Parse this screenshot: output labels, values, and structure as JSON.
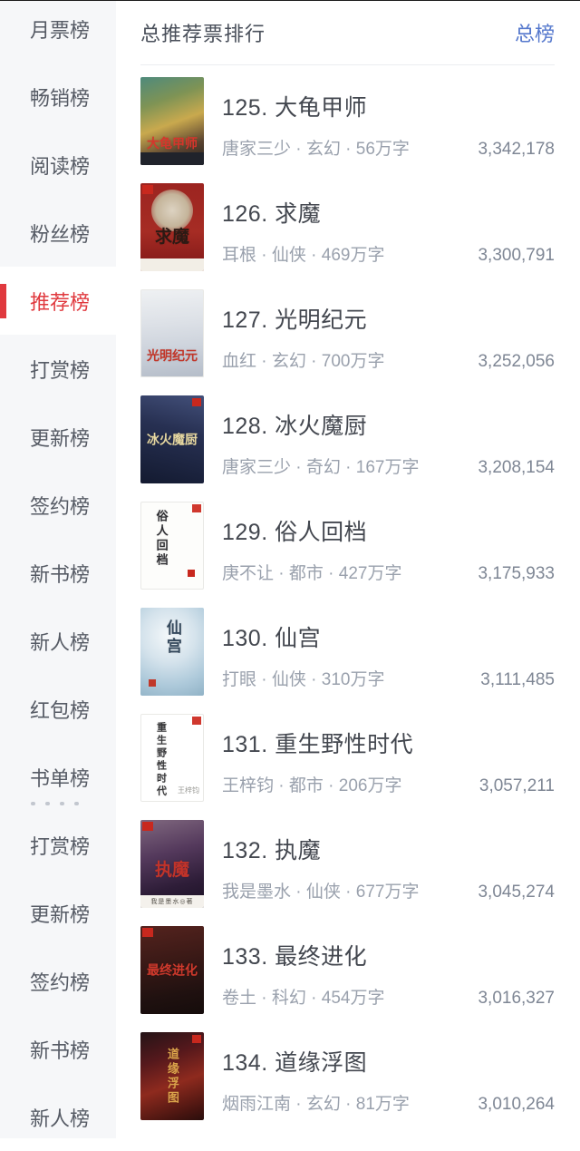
{
  "header": {
    "title": "总推荐票排行",
    "link": "总榜",
    "link_color": "#5578cd"
  },
  "colors": {
    "sidebar_bg": "#f6f7f9",
    "sidebar_text": "#565b65",
    "selected_red": "#e0393e",
    "title_text": "#43474f",
    "meta_text": "#9aa1ad",
    "votes_text": "#7e8694"
  },
  "sidebar": {
    "items": [
      {
        "label": "月票榜",
        "selected": false
      },
      {
        "label": "畅销榜",
        "selected": false
      },
      {
        "label": "阅读榜",
        "selected": false
      },
      {
        "label": "粉丝榜",
        "selected": false
      },
      {
        "label": "推荐榜",
        "selected": true
      },
      {
        "label": "打赏榜",
        "selected": false
      },
      {
        "label": "更新榜",
        "selected": false
      },
      {
        "label": "签约榜",
        "selected": false
      },
      {
        "label": "新书榜",
        "selected": false
      },
      {
        "label": "新人榜",
        "selected": false
      },
      {
        "label": "红包榜",
        "selected": false
      },
      {
        "label": "书单榜",
        "selected": false
      },
      {
        "label": "打赏榜",
        "selected": false
      },
      {
        "label": "更新榜",
        "selected": false
      },
      {
        "label": "签约榜",
        "selected": false
      },
      {
        "label": "新书榜",
        "selected": false
      },
      {
        "label": "新人榜",
        "selected": false
      }
    ],
    "ellipsis_dots": 4
  },
  "meta_separator": " · ",
  "rank_separator": ". ",
  "books": [
    {
      "rank": "125",
      "title": "大龟甲师",
      "author": "唐家三少",
      "genre": "玄幻",
      "words": "56万字",
      "votes": "3,342,178",
      "cover": {
        "bg": "linear-gradient(160deg,#4e8a7c 0%,#7e9355 28%,#c9a94e 52%,#5a4330 78%,#23201c 100%)",
        "text": "大龟甲师",
        "textColor": "#d6352c",
        "pos": "bottom",
        "size": 14,
        "band": {
          "bg": "#20232b",
          "text": "",
          "textColor": "#888"
        }
      }
    },
    {
      "rank": "126",
      "title": "求魔",
      "author": "耳根",
      "genre": "仙侠",
      "words": "469万字",
      "votes": "3,300,791",
      "cover": {
        "bg": "linear-gradient(180deg,#9c2420 0%,#a62c24 55%,#8e1f1c 82%,#7a1715 100%)",
        "emblem": "radial-gradient(circle,#ddd3c2 0%,#c4b49a 55%,#9c2420 100%)",
        "text": "求魔",
        "textColor": "#2c1a14",
        "pos": "center",
        "ty": "62%",
        "size": 19,
        "band": {
          "bg": "#f2eee6",
          "text": "",
          "textColor": "#777"
        },
        "badge_tl": "#c8281e"
      }
    },
    {
      "rank": "127",
      "title": "光明纪元",
      "author": "血红",
      "genre": "玄幻",
      "words": "700万字",
      "votes": "3,252,056",
      "cover": {
        "bg": "linear-gradient(175deg,#eff1f3 0%,#dde1e7 38%,#ccd2db 68%,#b4bcc8 100%)",
        "border": true,
        "text": "光明纪元",
        "textColor": "#c23528",
        "pos": "bottom",
        "size": 14
      }
    },
    {
      "rank": "128",
      "title": "冰火魔厨",
      "author": "唐家三少",
      "genre": "奇幻",
      "words": "167万字",
      "votes": "3,208,154",
      "cover": {
        "bg": "linear-gradient(195deg,#43507a 0%,#273052 40%,#131a30 100%)",
        "text": "冰火魔厨",
        "textColor": "#e6d7a0",
        "pos": "center",
        "size": 14,
        "badge_tr": "#c8281e"
      }
    },
    {
      "rank": "129",
      "title": "俗人回档",
      "author": "庚不让",
      "genre": "都市",
      "words": "427万字",
      "votes": "3,175,933",
      "cover": {
        "bg": "#fdfdfb",
        "border": true,
        "text": "俗人回档",
        "textColor": "#2f2f33",
        "pos": "left",
        "vertical": true,
        "size": 13,
        "badge_tr": "#d0382e",
        "badge_br": "#c8281e"
      }
    },
    {
      "rank": "130",
      "title": "仙宫",
      "author": "打眼",
      "genre": "仙侠",
      "words": "310万字",
      "votes": "3,111,485",
      "cover": {
        "bg": "radial-gradient(circle at 45% 32%,#f4f8fa 0%,#d5e3ec 38%,#adc9da 72%,#90b2c6 100%)",
        "text": "仙宫",
        "textColor": "#34485c",
        "pos": "center",
        "ty": "34%",
        "vertical": true,
        "size": 17,
        "badge_bl": "#c0392b"
      }
    },
    {
      "rank": "131",
      "title": "重生野性时代",
      "author": "王梓钧",
      "genre": "都市",
      "words": "206万字",
      "votes": "3,057,211",
      "cover": {
        "bg": "#ffffff",
        "border": true,
        "text": "重生野性时代",
        "textColor": "#38383a",
        "pos": "left",
        "vertical": true,
        "size": 11,
        "badge_tr": "#d0382e",
        "sig": "王梓钧"
      }
    },
    {
      "rank": "132",
      "title": "执魔",
      "author": "我是墨水",
      "genre": "仙侠",
      "words": "677万字",
      "votes": "3,045,274",
      "cover": {
        "bg": "linear-gradient(165deg,#80687f 0%,#54395c 38%,#2e1d38 72%,#1b1124 100%)",
        "text": "执魔",
        "textColor": "#c23329",
        "pos": "center",
        "ty": "58%",
        "size": 19,
        "band": {
          "bg": "#f4f1ec",
          "text": "我是墨水◎著",
          "textColor": "#55514a"
        },
        "badge_tl": "#c8281e"
      }
    },
    {
      "rank": "133",
      "title": "最终进化",
      "author": "卷土",
      "genre": "科幻",
      "words": "454万字",
      "votes": "3,016,327",
      "cover": {
        "bg": "linear-gradient(170deg,#54231e 0%,#3a1916 40%,#201110 75%,#150c0b 100%)",
        "text": "最终进化",
        "textColor": "#cf392c",
        "pos": "center",
        "size": 14,
        "badge_tl": "#c8281e"
      }
    },
    {
      "rank": "134",
      "title": "道缘浮图",
      "author": "烟雨江南",
      "genre": "玄幻",
      "words": "81万字",
      "votes": "3,010,264",
      "cover": {
        "bg": "linear-gradient(160deg,#241417 0%,#55181c 30%,#8e2a1e 58%,#461410 88%,#2a0e0c 100%)",
        "text": "道缘浮图",
        "textColor": "#d9a24a",
        "pos": "center",
        "vertical": true,
        "size": 13,
        "badge_tr": "#c8281e"
      }
    }
  ]
}
